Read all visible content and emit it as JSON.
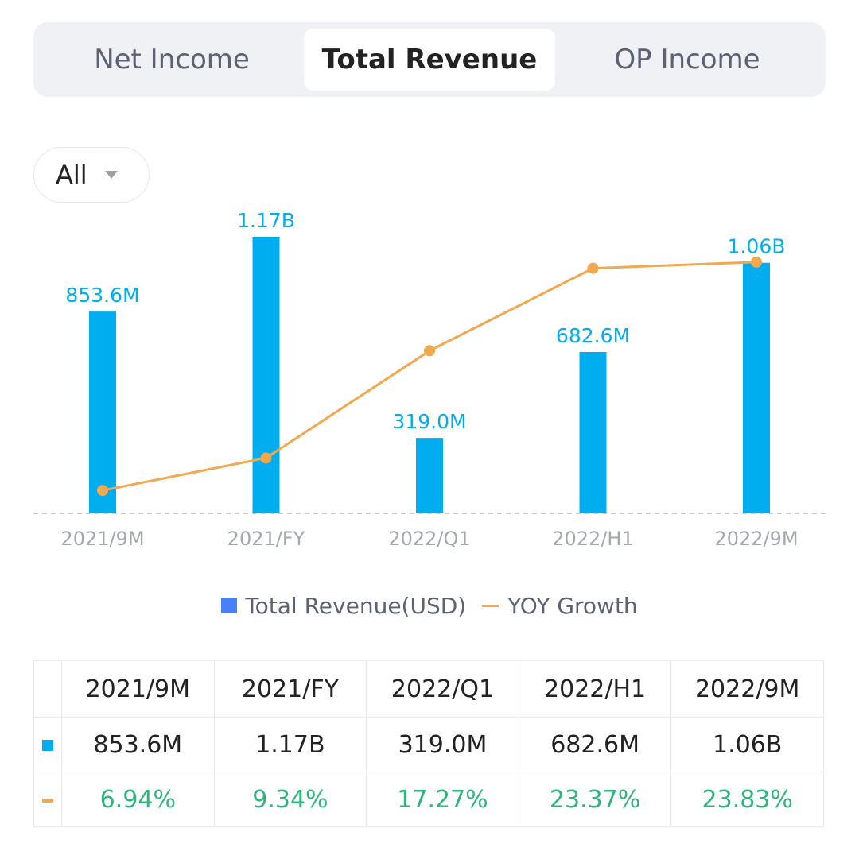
{
  "tabs": [
    {
      "label": "Net Income",
      "active": false
    },
    {
      "label": "Total Revenue",
      "active": true
    },
    {
      "label": "OP Income",
      "active": false
    }
  ],
  "period_select": {
    "value": "All"
  },
  "colors": {
    "bar": "#00aef0",
    "line": "#f2a84f",
    "growth_text": "#2db57b",
    "legend_bar": "#4a80f5"
  },
  "chart_data": {
    "type": "bar",
    "categories": [
      "2021/9M",
      "2021/FY",
      "2022/Q1",
      "2022/H1",
      "2022/9M"
    ],
    "series": [
      {
        "name": "Total Revenue(USD)",
        "type": "bar",
        "values": [
          853600000,
          1170000000,
          319000000,
          682600000,
          1060000000
        ],
        "labels": [
          "853.6M",
          "1.17B",
          "319.0M",
          "682.6M",
          "1.06B"
        ]
      },
      {
        "name": "YOY Growth",
        "type": "line",
        "values": [
          6.94,
          9.34,
          17.27,
          23.37,
          23.83
        ]
      }
    ],
    "legend": "bottom-center"
  },
  "legend": {
    "bar_label": "Total Revenue(USD)",
    "line_label": "YOY Growth"
  },
  "table": {
    "headers": [
      "2021/9M",
      "2021/FY",
      "2022/Q1",
      "2022/H1",
      "2022/9M"
    ],
    "revenue_row": [
      "853.6M",
      "1.17B",
      "319.0M",
      "682.6M",
      "1.06B"
    ],
    "growth_row": [
      "6.94%",
      "9.34%",
      "17.27%",
      "23.37%",
      "23.83%"
    ]
  }
}
